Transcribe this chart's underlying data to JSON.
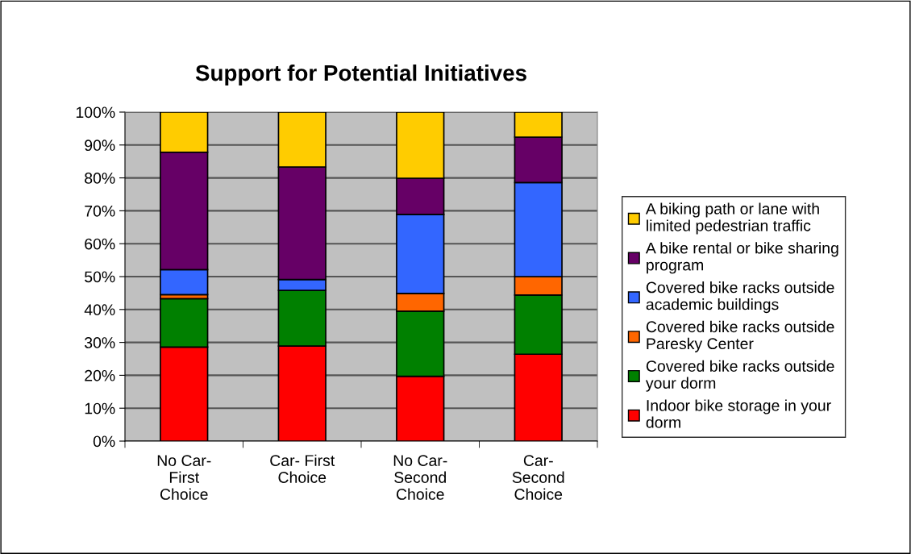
{
  "chart_data": {
    "type": "bar",
    "title": "Support for Potential Initiatives",
    "stacked": true,
    "categories": [
      "No Car- First Choice",
      "Car- First Choice",
      "No Car- Second Choice",
      "Car- Second Choice"
    ],
    "series": [
      {
        "name": "Indoor bike storage in your dorm",
        "color": "#ff0000",
        "values": [
          28.6,
          28.9,
          19.7,
          26.4
        ]
      },
      {
        "name": "Covered bike racks outside your dorm",
        "color": "#008000",
        "values": [
          14.7,
          16.9,
          19.8,
          18.0
        ]
      },
      {
        "name": "Covered bike racks outside Paresky Center",
        "color": "#ff6600",
        "values": [
          1.2,
          0,
          5.4,
          5.6
        ]
      },
      {
        "name": "Covered bike racks outside academic buildings",
        "color": "#3366ff",
        "values": [
          7.6,
          3.3,
          24.0,
          28.6
        ]
      },
      {
        "name": "A bike rental or bike sharing program",
        "color": "#660066",
        "values": [
          35.7,
          34.2,
          11.0,
          13.8
        ]
      },
      {
        "name": "A biking path or lane with limited pedestrian traffic",
        "color": "#ffcc00",
        "values": [
          12.2,
          16.7,
          20.1,
          7.6
        ]
      }
    ],
    "ylim": [
      0,
      100
    ],
    "yticks": [
      {
        "value": 0,
        "label": "0%"
      },
      {
        "value": 10,
        "label": "10%"
      },
      {
        "value": 20,
        "label": "20%"
      },
      {
        "value": 30,
        "label": "30%"
      },
      {
        "value": 40,
        "label": "40%"
      },
      {
        "value": 50,
        "label": "50%"
      },
      {
        "value": 60,
        "label": "60%"
      },
      {
        "value": 70,
        "label": "70%"
      },
      {
        "value": 80,
        "label": "80%"
      },
      {
        "value": 90,
        "label": "90%"
      },
      {
        "value": 100,
        "label": "100%"
      }
    ],
    "grid": "y",
    "legend": "right"
  }
}
